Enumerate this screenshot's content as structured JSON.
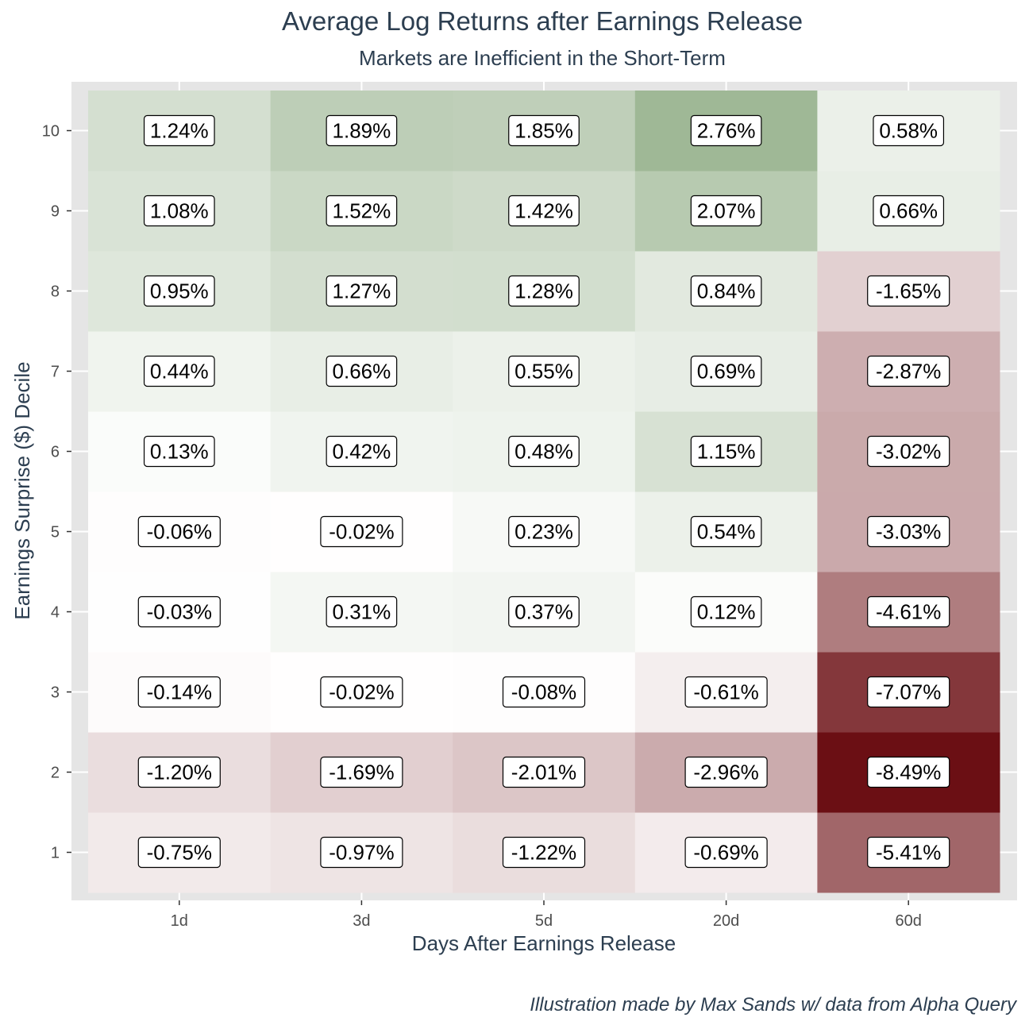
{
  "chart_data": {
    "type": "heatmap",
    "title": "Average Log Returns after Earnings Release",
    "subtitle": "Markets are Inefficient in the Short-Term",
    "xlabel": "Days After Earnings Release",
    "ylabel": "Earnings Surprise ($) Decile",
    "x_categories": [
      "1d",
      "3d",
      "5d",
      "20d",
      "60d"
    ],
    "y_categories": [
      "1",
      "2",
      "3",
      "4",
      "5",
      "6",
      "7",
      "8",
      "9",
      "10"
    ],
    "values": [
      [
        -0.75,
        -0.97,
        -1.22,
        -0.69,
        -5.41
      ],
      [
        -1.2,
        -1.69,
        -2.01,
        -2.96,
        -8.49
      ],
      [
        -0.14,
        -0.02,
        -0.08,
        -0.61,
        -7.07
      ],
      [
        -0.03,
        0.31,
        0.37,
        0.12,
        -4.61
      ],
      [
        -0.06,
        -0.02,
        0.23,
        0.54,
        -3.03
      ],
      [
        0.13,
        0.42,
        0.48,
        1.15,
        -3.02
      ],
      [
        0.44,
        0.66,
        0.55,
        0.69,
        -2.87
      ],
      [
        0.95,
        1.27,
        1.28,
        0.84,
        -1.65
      ],
      [
        1.08,
        1.52,
        1.42,
        2.07,
        0.66
      ],
      [
        1.24,
        1.89,
        1.85,
        2.76,
        0.58
      ]
    ],
    "labels": [
      [
        "-0.75%",
        "-0.97%",
        "-1.22%",
        "-0.69%",
        "-5.41%"
      ],
      [
        "-1.20%",
        "-1.69%",
        "-2.01%",
        "-2.96%",
        "-8.49%"
      ],
      [
        "-0.14%",
        "-0.02%",
        "-0.08%",
        "-0.61%",
        "-7.07%"
      ],
      [
        "-0.03%",
        "0.31%",
        "0.37%",
        "0.12%",
        "-4.61%"
      ],
      [
        "-0.06%",
        "-0.02%",
        "0.23%",
        "0.54%",
        "-3.03%"
      ],
      [
        "0.13%",
        "0.42%",
        "0.48%",
        "1.15%",
        "-3.02%"
      ],
      [
        "0.44%",
        "0.66%",
        "0.55%",
        "0.69%",
        "-2.87%"
      ],
      [
        "0.95%",
        "1.27%",
        "1.28%",
        "0.84%",
        "-1.65%"
      ],
      [
        "1.08%",
        "1.52%",
        "1.42%",
        "2.07%",
        "0.66%"
      ],
      [
        "1.24%",
        "1.89%",
        "1.85%",
        "2.76%",
        "0.58%"
      ]
    ],
    "color_scale": {
      "low": "#6b0f14",
      "mid": "#ffffff",
      "high": "#9fb896",
      "min": -8.49,
      "max": 2.76
    },
    "panel_background": "#e5e5e5",
    "grid": true
  },
  "caption": "Illustration made by Max Sands w/ data from Alpha Query"
}
